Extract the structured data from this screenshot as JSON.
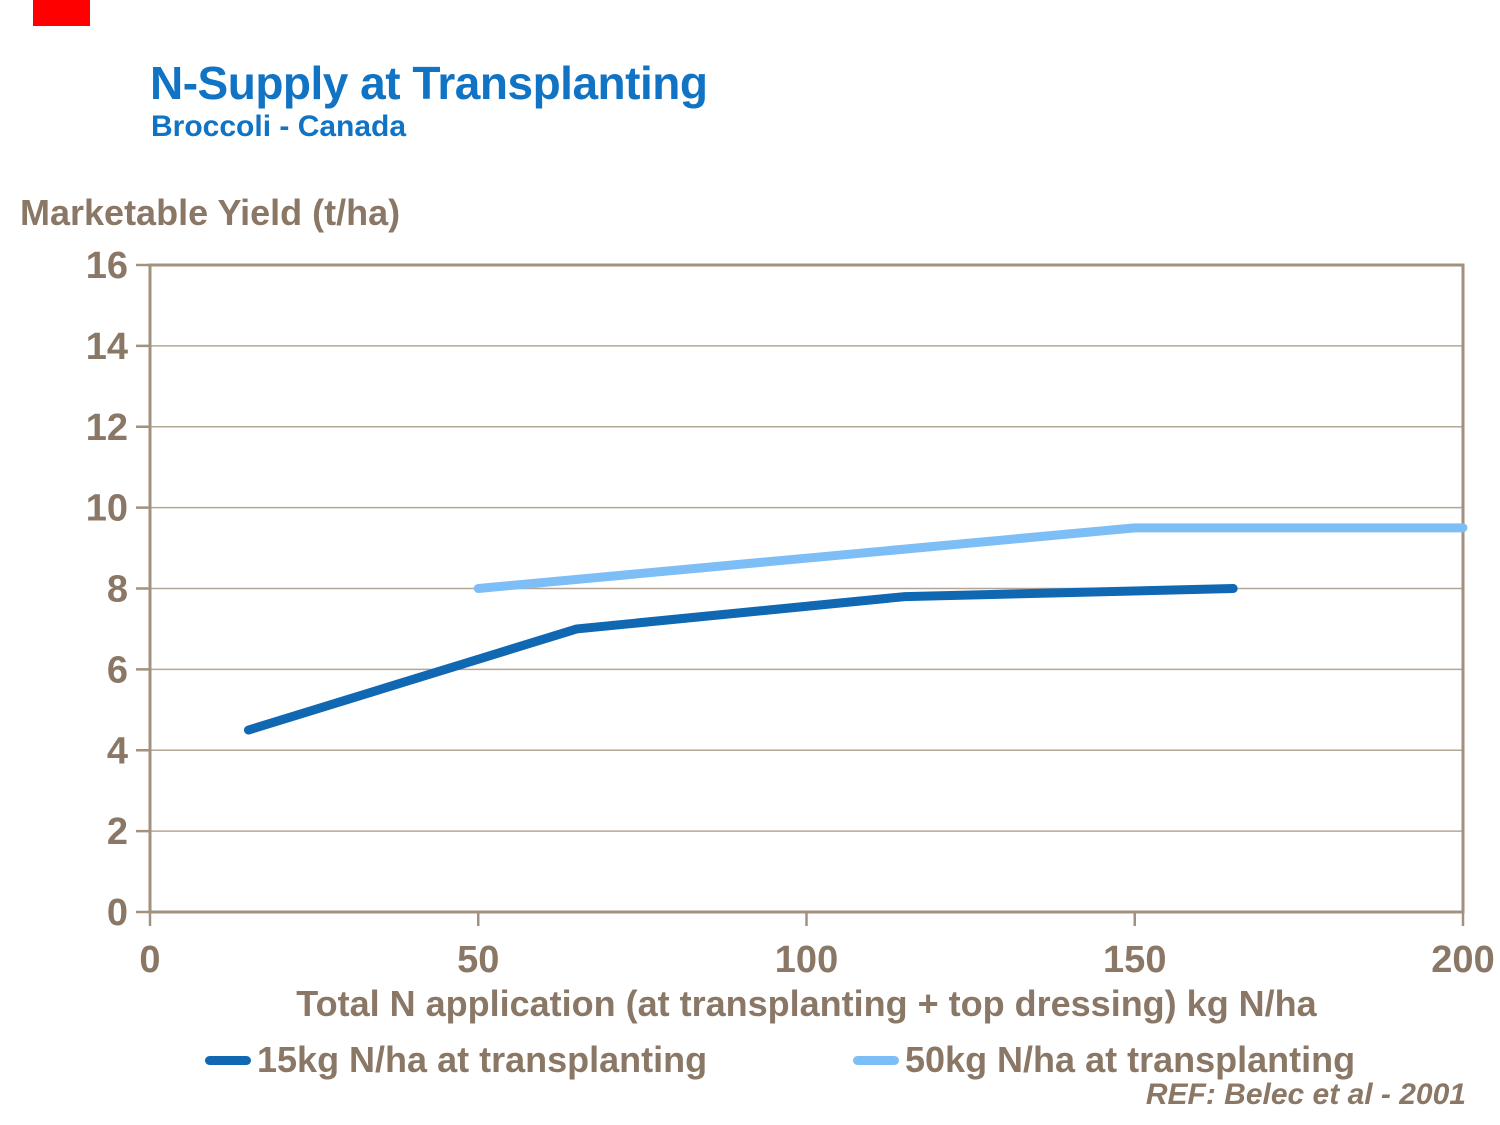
{
  "page": {
    "background": "#ffffff"
  },
  "decoration": {
    "red_bar_color": "#fe0000"
  },
  "header": {
    "title": "N-Supply at Transplanting",
    "subtitle": "Broccoli - Canada",
    "title_color": "#1173c4"
  },
  "chart_data": {
    "type": "line",
    "y_axis_title": "Marketable Yield (t/ha)",
    "x_axis_title": "Total N application (at transplanting + top dressing) kg N/ha",
    "xlim": [
      0,
      200
    ],
    "ylim": [
      0,
      16
    ],
    "x_ticks": [
      0,
      50,
      100,
      150,
      200
    ],
    "y_ticks": [
      0,
      2,
      4,
      6,
      8,
      10,
      12,
      14,
      16
    ],
    "grid": "horizontal",
    "legend_position": "bottom",
    "series": [
      {
        "name": "15kg N/ha at transplanting",
        "color": "#1068b3",
        "x": [
          15,
          65,
          115,
          165
        ],
        "y": [
          4.5,
          7.0,
          7.8,
          8.0
        ]
      },
      {
        "name": "50kg N/ha at transplanting",
        "color": "#7dbef6",
        "x": [
          50,
          100,
          150,
          200
        ],
        "y": [
          8.0,
          8.75,
          9.5,
          9.5
        ]
      }
    ],
    "axis_color": "#a2917e",
    "grid_color": "#b3a695",
    "label_color": "#8a7765"
  },
  "footer": {
    "reference": "REF: Belec et al - 2001"
  }
}
